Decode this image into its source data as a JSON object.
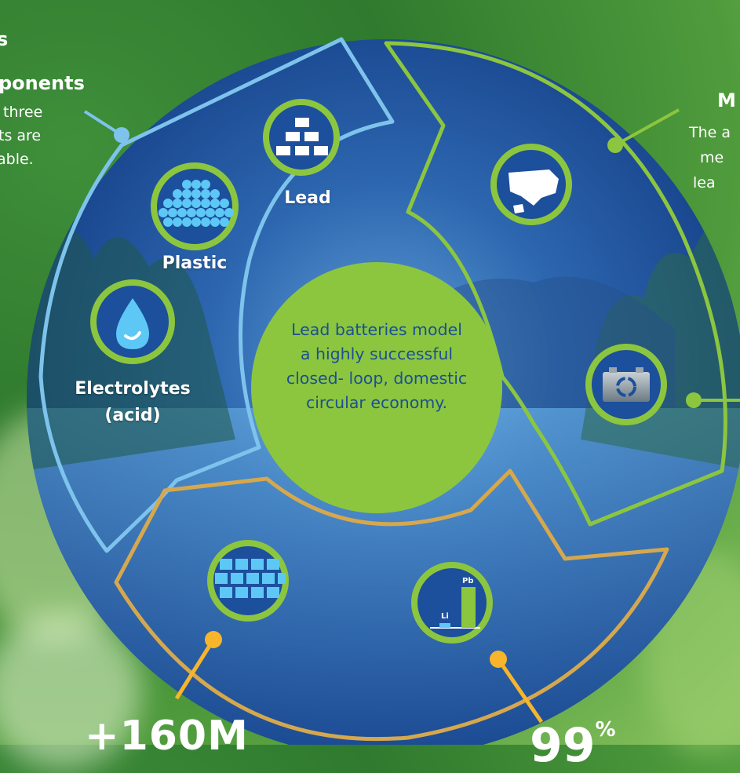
{
  "left_panel": {
    "partial_glyph": "s",
    "heading": "ponents",
    "lines": [
      "three",
      "ts are",
      "able."
    ]
  },
  "right_panel": {
    "heading": "M",
    "lines": [
      "The a",
      "me",
      "lea"
    ]
  },
  "segments": {
    "components": {
      "lead_label": "Lead",
      "plastic_label": "Plastic",
      "electrolytes_label": "Electrolytes",
      "electrolytes_sub": "(acid)"
    },
    "chart_icon": {
      "li_label": "Li",
      "pb_label": "Pb"
    }
  },
  "center": {
    "lines": [
      "Lead batteries model",
      "a highly successful",
      "closed- loop, domestic",
      "circular economy."
    ]
  },
  "stats": {
    "left_stat": "+160M",
    "right_stat_partial": "99",
    "right_stat_unit": "%"
  },
  "colors": {
    "circle_blue": "#1f4f96",
    "ring_light_blue": "#7ec3ec",
    "ring_green": "#8cc63f",
    "ring_gold": "#d6a84e",
    "center_green": "#8cc63f",
    "pointer_yellow": "#f7b52b",
    "icon_blue": "#1c4f9c"
  },
  "icons": [
    "gold-bars-icon",
    "plastic-pellets-icon",
    "water-drop-icon",
    "usa-map-icon",
    "battery-recycle-icon",
    "battery-grid-icon",
    "bar-chart-icon"
  ]
}
